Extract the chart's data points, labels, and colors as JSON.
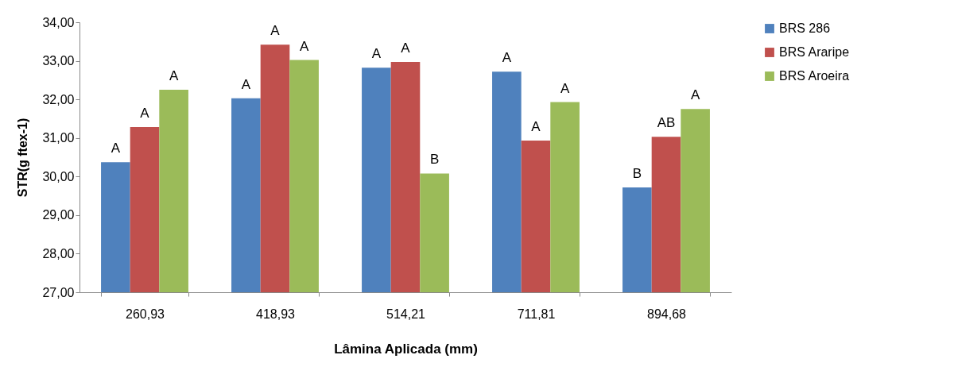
{
  "chart_data": {
    "type": "bar",
    "xlabel": "Lâmina Aplicada (mm)",
    "ylabel": "STR(g ftex-1)",
    "categories": [
      "260,93",
      "418,93",
      "514,21",
      "711,81",
      "894,68"
    ],
    "series": [
      {
        "name": "BRS 286",
        "color": "#4f81bd",
        "values": [
          30.37,
          32.03,
          32.82,
          32.72,
          29.72
        ],
        "value_labels": [
          "A",
          "A",
          "A",
          "A",
          "B"
        ]
      },
      {
        "name": "BRS Araripe",
        "color": "#c0504d",
        "values": [
          31.28,
          33.42,
          32.97,
          30.93,
          31.03
        ],
        "value_labels": [
          "A",
          "A",
          "A",
          "A",
          "AB"
        ]
      },
      {
        "name": "BRS Aroeira",
        "color": "#9bbb59",
        "values": [
          32.25,
          33.02,
          30.08,
          31.93,
          31.75
        ],
        "value_labels": [
          "A",
          "A",
          "B",
          "A",
          "A"
        ]
      }
    ],
    "ylim": [
      27,
      34
    ],
    "yticks": [
      {
        "value": 27,
        "label": "27,00"
      },
      {
        "value": 28,
        "label": "28,00"
      },
      {
        "value": 29,
        "label": "29,00"
      },
      {
        "value": 30,
        "label": "30,00"
      },
      {
        "value": 31,
        "label": "31,00"
      },
      {
        "value": 32,
        "label": "32,00"
      },
      {
        "value": 33,
        "label": "33,00"
      },
      {
        "value": 34,
        "label": "34,00"
      }
    ],
    "grid": false,
    "legend": "right"
  }
}
